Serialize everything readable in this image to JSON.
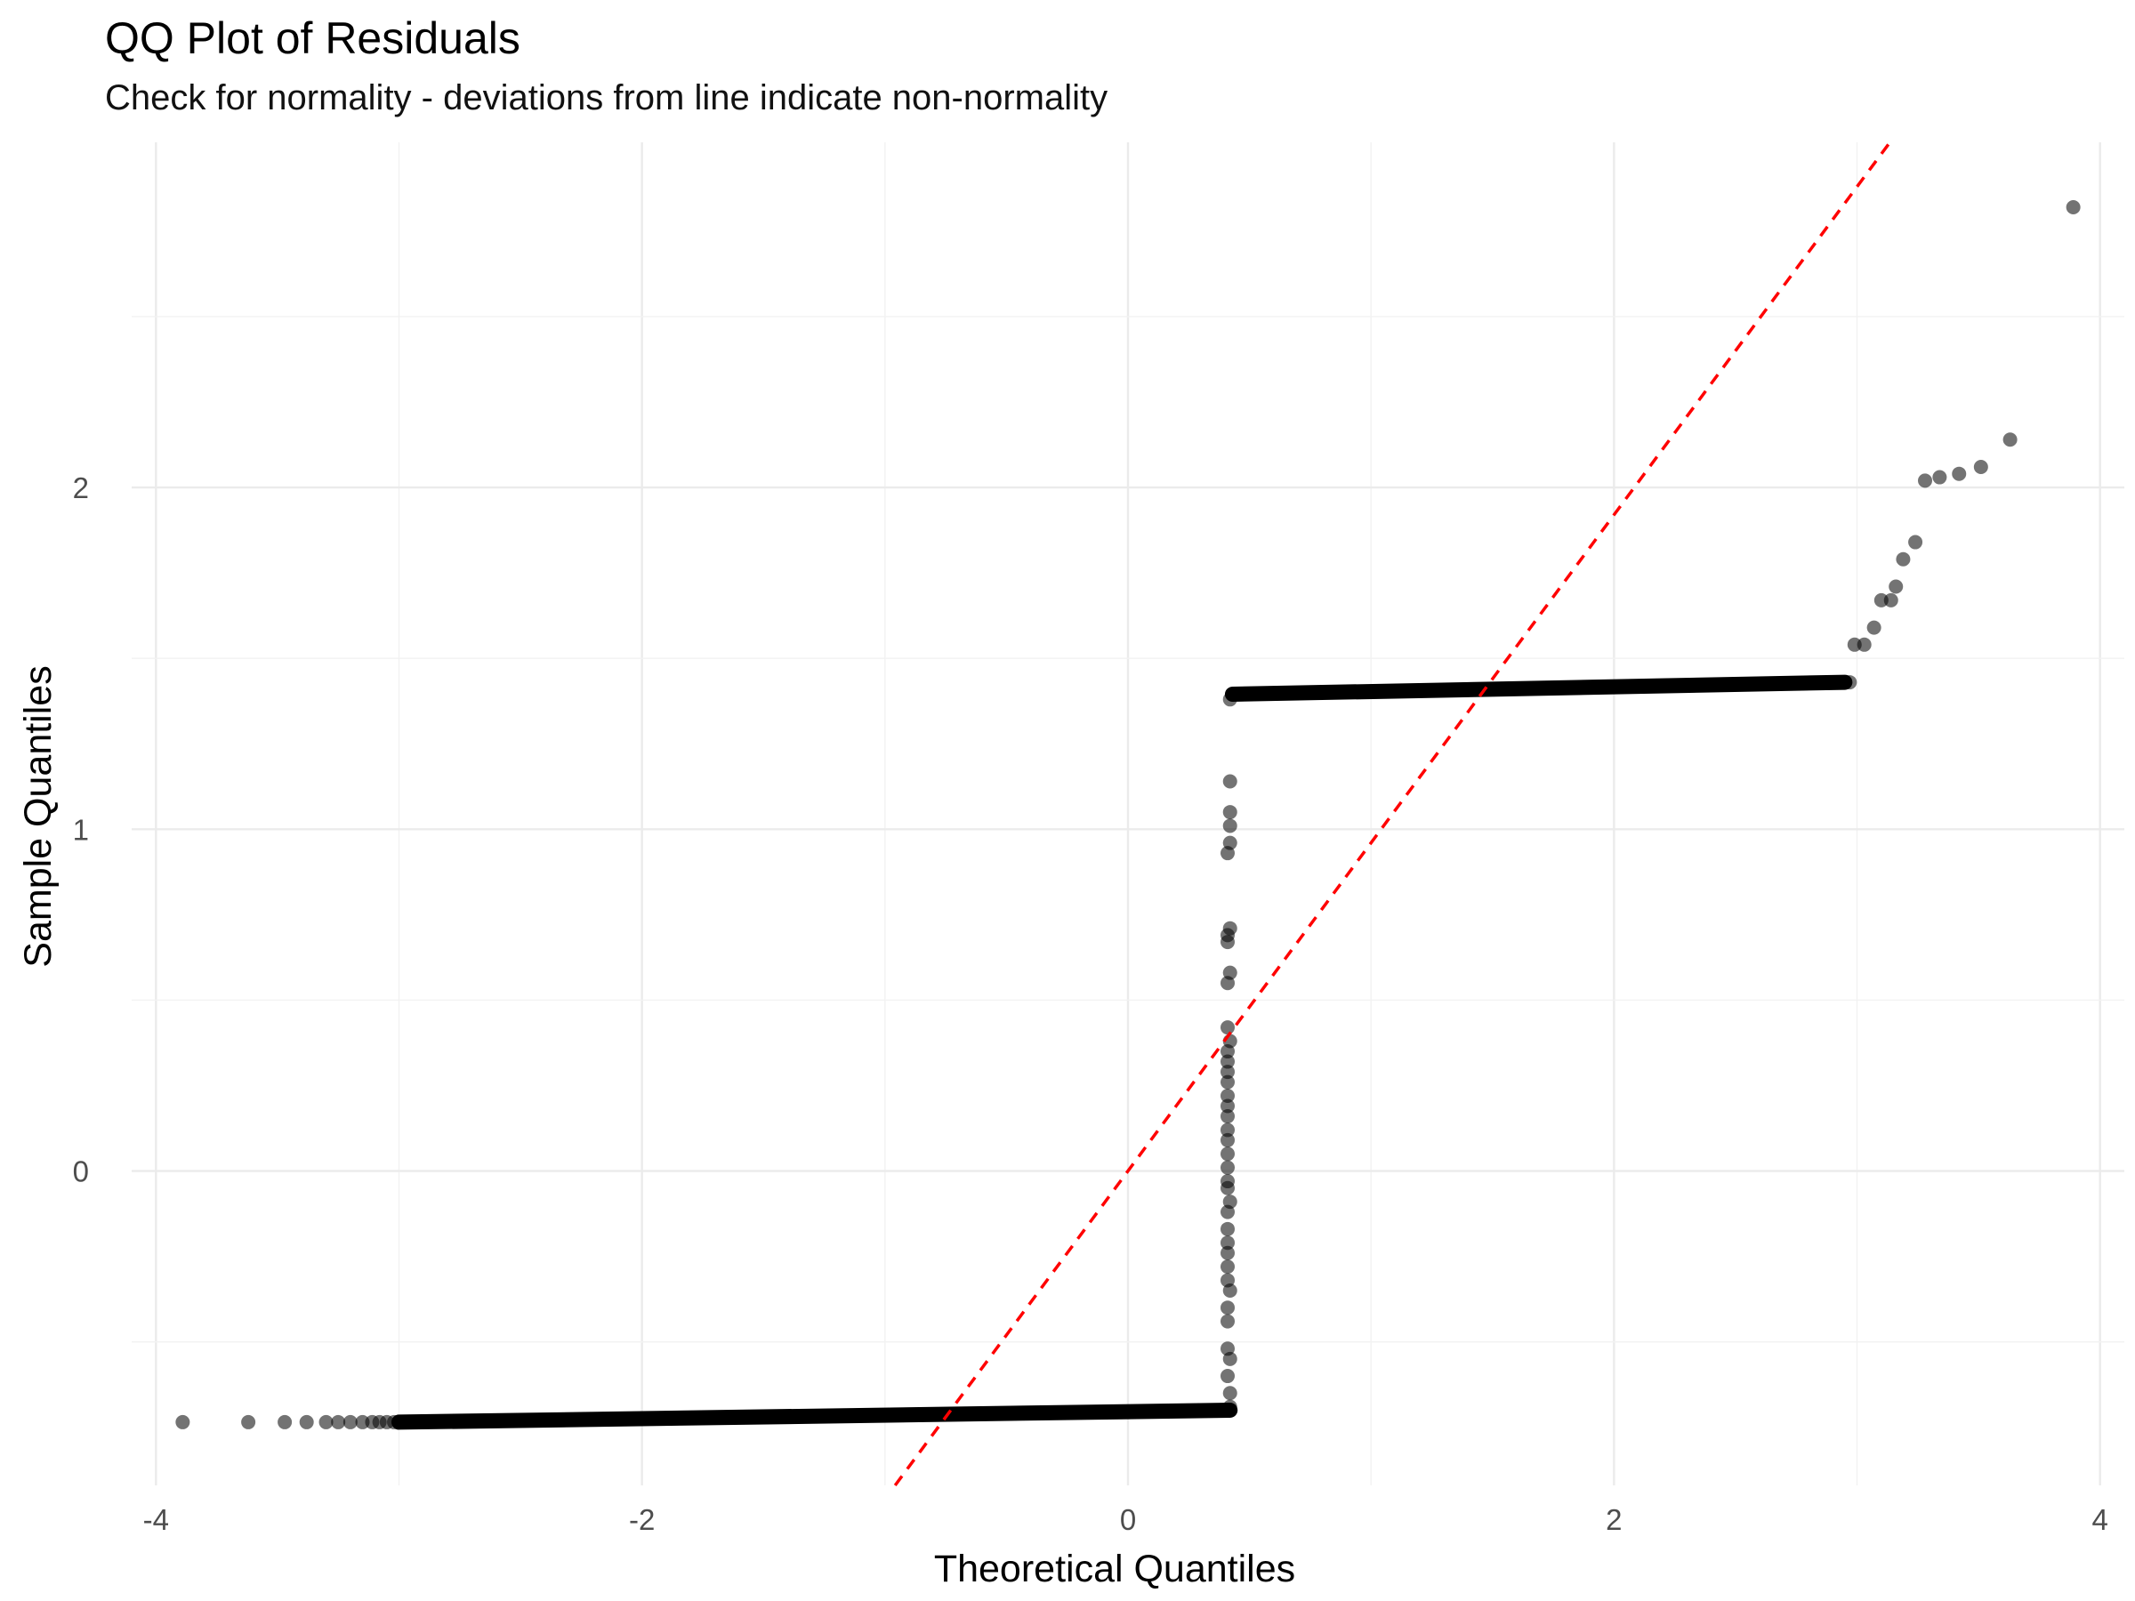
{
  "chart_data": {
    "type": "scatter",
    "title": "QQ Plot of Residuals",
    "subtitle": "Check for normality - deviations from line indicate non-normality",
    "xlabel": "Theoretical Quantiles",
    "ylabel": "Sample Quantiles",
    "xlim": [
      -4.1,
      4.1
    ],
    "ylim": [
      -0.92,
      3.01
    ],
    "x_ticks": [
      -4,
      -2,
      0,
      2,
      4
    ],
    "x_tick_labels": [
      "-4",
      "-2",
      "0",
      "2",
      "4"
    ],
    "y_ticks": [
      0,
      1,
      2
    ],
    "y_tick_labels": [
      "0",
      "1",
      "2"
    ],
    "grid": true,
    "point_color": "#000000",
    "point_opacity": 0.55,
    "reference_line": {
      "slope": 0.96,
      "intercept": 0.0,
      "color": "#ff0000",
      "style": "dashed"
    },
    "segments": [
      {
        "name": "lower_plateau",
        "x_start": -3.0,
        "x_end": 0.42,
        "y_start": -0.735,
        "y_end": -0.7
      },
      {
        "name": "upper_plateau",
        "x_start": 0.43,
        "x_end": 2.95,
        "y_start": 1.395,
        "y_end": 1.43
      }
    ],
    "points": [
      [
        -3.89,
        -0.735
      ],
      [
        -3.62,
        -0.735
      ],
      [
        -3.47,
        -0.735
      ],
      [
        -3.38,
        -0.735
      ],
      [
        -3.3,
        -0.735
      ],
      [
        -3.25,
        -0.735
      ],
      [
        -3.2,
        -0.735
      ],
      [
        -3.15,
        -0.735
      ],
      [
        -3.11,
        -0.735
      ],
      [
        -3.08,
        -0.735
      ],
      [
        -3.05,
        -0.735
      ],
      [
        -3.02,
        -0.735
      ],
      [
        0.42,
        -0.69
      ],
      [
        0.42,
        -0.65
      ],
      [
        0.41,
        -0.6
      ],
      [
        0.42,
        -0.55
      ],
      [
        0.41,
        -0.52
      ],
      [
        0.41,
        -0.44
      ],
      [
        0.41,
        -0.4
      ],
      [
        0.42,
        -0.35
      ],
      [
        0.41,
        -0.32
      ],
      [
        0.41,
        -0.28
      ],
      [
        0.41,
        -0.24
      ],
      [
        0.41,
        -0.21
      ],
      [
        0.41,
        -0.17
      ],
      [
        0.41,
        -0.12
      ],
      [
        0.42,
        -0.09
      ],
      [
        0.41,
        -0.05
      ],
      [
        0.41,
        -0.03
      ],
      [
        0.41,
        0.01
      ],
      [
        0.41,
        0.05
      ],
      [
        0.41,
        0.09
      ],
      [
        0.41,
        0.12
      ],
      [
        0.41,
        0.16
      ],
      [
        0.41,
        0.19
      ],
      [
        0.41,
        0.22
      ],
      [
        0.41,
        0.26
      ],
      [
        0.41,
        0.29
      ],
      [
        0.41,
        0.32
      ],
      [
        0.41,
        0.35
      ],
      [
        0.42,
        0.38
      ],
      [
        0.41,
        0.42
      ],
      [
        0.41,
        0.55
      ],
      [
        0.42,
        0.58
      ],
      [
        0.41,
        0.67
      ],
      [
        0.41,
        0.69
      ],
      [
        0.42,
        0.71
      ],
      [
        0.41,
        0.93
      ],
      [
        0.42,
        0.96
      ],
      [
        0.42,
        1.01
      ],
      [
        0.42,
        1.05
      ],
      [
        0.42,
        1.14
      ],
      [
        0.42,
        1.38
      ],
      [
        2.97,
        1.43
      ],
      [
        2.99,
        1.54
      ],
      [
        3.03,
        1.54
      ],
      [
        3.07,
        1.59
      ],
      [
        3.1,
        1.67
      ],
      [
        3.14,
        1.67
      ],
      [
        3.16,
        1.71
      ],
      [
        3.19,
        1.79
      ],
      [
        3.24,
        1.84
      ],
      [
        3.28,
        2.02
      ],
      [
        3.34,
        2.03
      ],
      [
        3.42,
        2.04
      ],
      [
        3.51,
        2.06
      ],
      [
        3.63,
        2.14
      ],
      [
        3.89,
        2.82
      ]
    ]
  }
}
